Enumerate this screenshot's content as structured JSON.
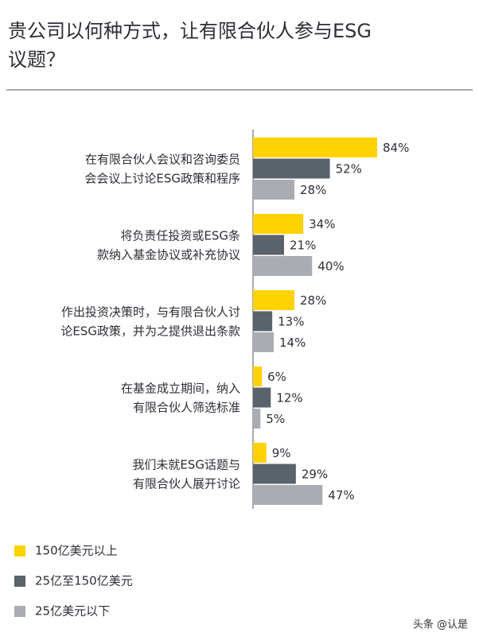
{
  "chart_data": {
    "type": "bar",
    "orientation": "horizontal",
    "title": [
      "贵公司以何种方式，让有限合伙人参与ESG",
      "议题？"
    ],
    "categories": [
      [
        "在有限合伙人会议和咨询委员",
        "会会议上讨论ESG政策和程序"
      ],
      [
        "将负责任投资或ESG条",
        "款纳入基金协议或补充协议"
      ],
      [
        "作出投资决策时，与有限合伙人讨",
        "论ESG政策，并为之提供退出条款"
      ],
      [
        "在基金成立期间，纳入",
        "有限合伙人筛选标准"
      ],
      [
        "我们未就ESG话题与",
        "有限合伙人展开讨论"
      ]
    ],
    "series": [
      {
        "name": "150亿美元以上",
        "color": "#ffd200",
        "values": [
          84,
          34,
          28,
          6,
          9
        ],
        "value_labels": [
          "84%",
          "34%",
          "28%",
          "6%",
          "9%"
        ]
      },
      {
        "name": "25亿至150亿美元",
        "color": "#5a626b",
        "values": [
          52,
          21,
          13,
          12,
          29
        ],
        "value_labels": [
          "52%",
          "21%",
          "13%",
          "12%",
          "29%"
        ]
      },
      {
        "name": "25亿美元以下",
        "color": "#a9adb2",
        "values": [
          28,
          40,
          14,
          5,
          47
        ],
        "value_labels": [
          "28%",
          "40%",
          "14%",
          "5%",
          "47%"
        ]
      }
    ],
    "legend": "bottom-left",
    "watermark": "头条 @认是"
  }
}
